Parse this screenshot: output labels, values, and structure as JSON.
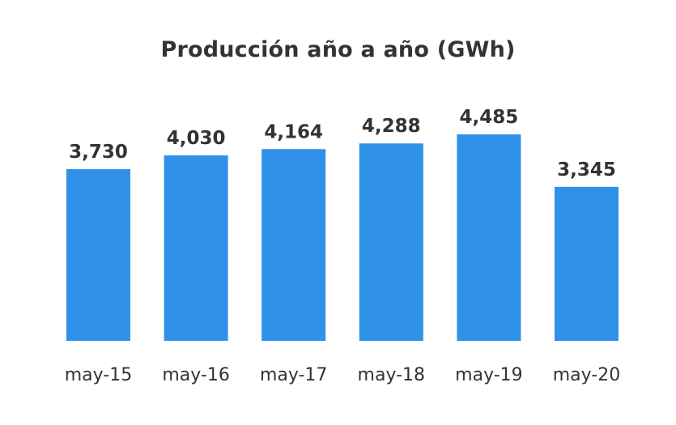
{
  "chart_data": {
    "type": "bar",
    "title": "Producción año a año (GWh)",
    "categories": [
      "may-15",
      "may-16",
      "may-17",
      "may-18",
      "may-19",
      "may-20"
    ],
    "values": [
      3730,
      4030,
      4164,
      4288,
      4485,
      3345
    ],
    "value_labels": [
      "3,730",
      "4,030",
      "4,164",
      "4,288",
      "4,485",
      "3,345"
    ],
    "xlabel": "",
    "ylabel": "",
    "ylim": [
      0,
      4485
    ],
    "grid": false,
    "legend": "none",
    "bar_color": "#2f91e8"
  }
}
